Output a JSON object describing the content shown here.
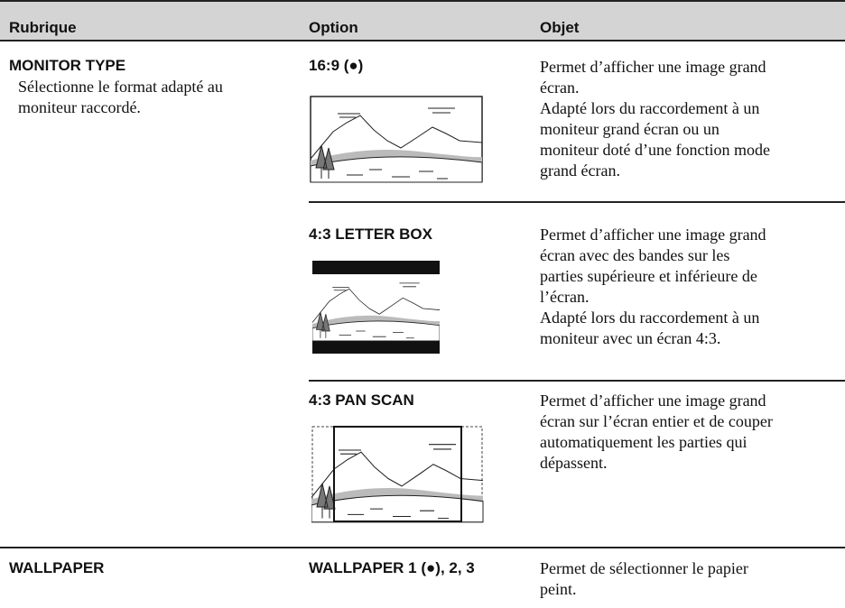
{
  "header": {
    "columns": [
      "Rubrique",
      "Option",
      "Objet"
    ]
  },
  "rows": [
    {
      "item": "MONITOR TYPE",
      "description": [
        "Sélectionne le format adapté au",
        "moniteur raccordé."
      ],
      "options": [
        {
          "label": "16:9 (●)",
          "text": [
            "Permet d’afficher une image grand",
            "écran.",
            "Adapté lors du raccordement à un",
            "moniteur grand écran ou un",
            "moniteur doté d’une fonction mode",
            "grand écran."
          ]
        },
        {
          "label": "4:3 LETTER BOX",
          "text": [
            "Permet d’afficher une image grand",
            "écran avec des bandes sur les",
            "parties supérieure et inférieure de",
            "l’écran.",
            "Adapté lors du raccordement à un",
            "moniteur avec un écran 4:3."
          ]
        },
        {
          "label": "4:3 PAN SCAN",
          "text": [
            "Permet d’afficher une image grand",
            "écran sur l’écran entier et de couper",
            "automatiquement les parties qui",
            "dépassent."
          ]
        }
      ]
    },
    {
      "item": "WALLPAPER",
      "description": [],
      "options": [
        {
          "label": "WALLPAPER 1 (●), 2, 3",
          "text": [
            "Permet de sélectionner le papier",
            "peint."
          ]
        }
      ]
    }
  ]
}
